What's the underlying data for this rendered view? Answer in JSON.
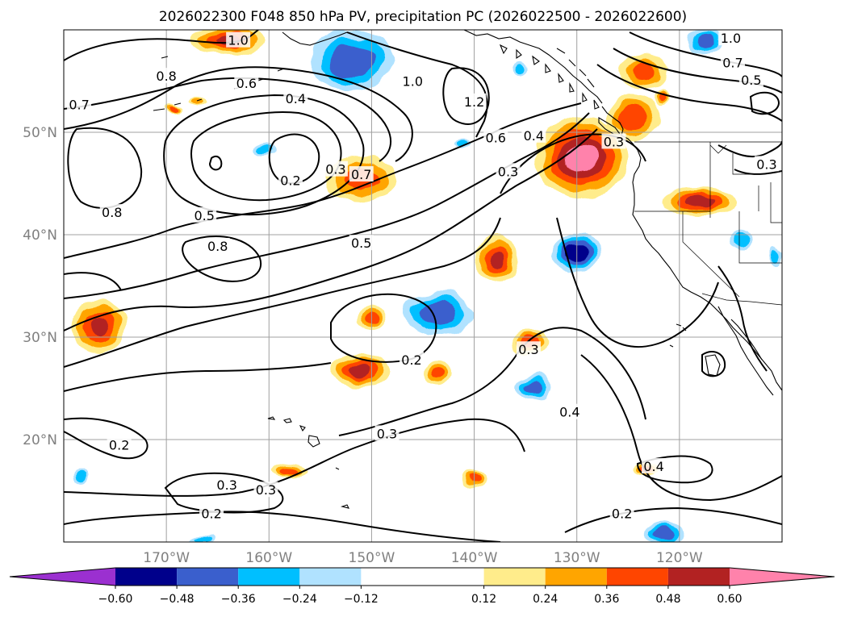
{
  "chart_data": {
    "type": "contour",
    "title": "2026022300 F048 850 hPa PV, precipitation PC (2026022500 - 2026022600)",
    "lon_range": [
      -180,
      -110
    ],
    "lat_range": [
      10,
      60
    ],
    "x_ticks": [
      {
        "value": -170,
        "label": "170°W"
      },
      {
        "value": -160,
        "label": "160°W"
      },
      {
        "value": -150,
        "label": "150°W"
      },
      {
        "value": -140,
        "label": "140°W"
      },
      {
        "value": -130,
        "label": "130°W"
      },
      {
        "value": -120,
        "label": "120°W"
      }
    ],
    "y_ticks": [
      {
        "value": 20,
        "label": "20°N"
      },
      {
        "value": 30,
        "label": "30°N"
      },
      {
        "value": 40,
        "label": "40°N"
      },
      {
        "value": 50,
        "label": "50°N"
      }
    ],
    "grid": true,
    "colorbar": {
      "boundaries": [
        -0.72,
        -0.6,
        -0.48,
        -0.36,
        -0.24,
        -0.12,
        0.12,
        0.24,
        0.36,
        0.48,
        0.6,
        0.72
      ],
      "colors": [
        "#9b30d0",
        "#00008b",
        "#3a5fcd",
        "#00bfff",
        "#b0e2ff",
        "#ffffff",
        "#ffec8b",
        "#ffa500",
        "#ff4500",
        "#b22222",
        "#ff82ab"
      ],
      "tick_values": [
        -0.6,
        -0.48,
        -0.36,
        -0.24,
        -0.12,
        0.12,
        0.24,
        0.36,
        0.48,
        0.6
      ],
      "tick_labels": [
        "−0.60",
        "−0.48",
        "−0.36",
        "−0.24",
        "−0.12",
        "0.12",
        "0.24",
        "0.36",
        "0.48",
        "0.60"
      ],
      "extend": "both"
    },
    "precip_anomalies": [
      {
        "lon": -164,
        "lat": 59,
        "rlon": 3.6,
        "rlat": 1.6,
        "value": 0.5
      },
      {
        "lon": -151,
        "lat": 45.5,
        "rlon": 3.6,
        "rlat": 2.1,
        "value": 0.4
      },
      {
        "lon": -129.5,
        "lat": 47.5,
        "rlon": 4.6,
        "rlat": 4.0,
        "value": 0.65
      },
      {
        "lon": -124.5,
        "lat": 51.5,
        "rlon": 2.6,
        "rlat": 2.2,
        "value": 0.45
      },
      {
        "lon": -123.5,
        "lat": 56,
        "rlon": 2.4,
        "rlat": 1.6,
        "value": 0.42
      },
      {
        "lon": -118,
        "lat": 43.2,
        "rlon": 3.6,
        "rlat": 1.4,
        "value": 0.5
      },
      {
        "lon": -176.5,
        "lat": 31,
        "rlon": 2.6,
        "rlat": 2.6,
        "value": 0.5
      },
      {
        "lon": -137.8,
        "lat": 37.7,
        "rlon": 2.0,
        "rlat": 2.5,
        "value": 0.5
      },
      {
        "lon": -150,
        "lat": 31.9,
        "rlon": 1.3,
        "rlat": 1.2,
        "value": 0.4
      },
      {
        "lon": -151.2,
        "lat": 26.8,
        "rlon": 2.9,
        "rlat": 1.6,
        "value": 0.5
      },
      {
        "lon": -143.5,
        "lat": 26.5,
        "rlon": 1.5,
        "rlat": 1.2,
        "value": 0.4
      },
      {
        "lon": -134.5,
        "lat": 29.5,
        "rlon": 1.8,
        "rlat": 1.1,
        "value": 0.4
      },
      {
        "lon": -140,
        "lat": 16.1,
        "rlon": 1.2,
        "rlat": 0.9,
        "value": 0.4
      },
      {
        "lon": -158,
        "lat": 17,
        "rlon": 1.8,
        "rlat": 0.7,
        "value": 0.4
      },
      {
        "lon": -123,
        "lat": 17.3,
        "rlon": 1.2,
        "rlat": 0.6,
        "value": 0.4
      },
      {
        "lon": -121.8,
        "lat": 53.5,
        "rlon": 0.8,
        "rlat": 0.8,
        "value": 0.4
      },
      {
        "lon": -169.2,
        "lat": 52.3,
        "rlon": 0.9,
        "rlat": 0.4,
        "value": 0.4
      },
      {
        "lon": -167,
        "lat": 53,
        "rlon": 0.8,
        "rlat": 0.4,
        "value": 0.3
      },
      {
        "lon": -152,
        "lat": 57,
        "rlon": 4.0,
        "rlat": 3.0,
        "value": -0.45
      },
      {
        "lon": -143.5,
        "lat": 32.3,
        "rlon": 3.3,
        "rlat": 2.1,
        "value": -0.45
      },
      {
        "lon": -130,
        "lat": 38.2,
        "rlon": 2.4,
        "rlat": 1.9,
        "value": -0.55
      },
      {
        "lon": -134.2,
        "lat": 25.1,
        "rlon": 1.7,
        "rlat": 1.3,
        "value": -0.4
      },
      {
        "lon": -117.5,
        "lat": 58.8,
        "rlon": 1.7,
        "rlat": 1.2,
        "value": -0.45
      },
      {
        "lon": -114,
        "lat": 39.5,
        "rlon": 1.2,
        "rlat": 1.0,
        "value": -0.35
      },
      {
        "lon": -135.5,
        "lat": 56.2,
        "rlon": 0.8,
        "rlat": 0.7,
        "value": -0.3
      },
      {
        "lon": -141,
        "lat": 49,
        "rlon": 0.9,
        "rlat": 0.4,
        "value": -0.3
      },
      {
        "lon": -160.5,
        "lat": 48.4,
        "rlon": 1.0,
        "rlat": 0.7,
        "value": -0.3
      },
      {
        "lon": -178.5,
        "lat": 16.3,
        "rlon": 0.7,
        "rlat": 0.7,
        "value": -0.35
      },
      {
        "lon": -121.5,
        "lat": 10.8,
        "rlon": 1.9,
        "rlat": 1.2,
        "value": -0.45
      },
      {
        "lon": -166.5,
        "lat": 10.3,
        "rlon": 1.2,
        "rlat": 0.4,
        "value": -0.3
      },
      {
        "lon": -110.5,
        "lat": 38,
        "rlon": 0.6,
        "rlat": 1.0,
        "value": -0.3
      }
    ],
    "contour_labels": [
      {
        "lon": -163,
        "lat": 59,
        "text": "1.0"
      },
      {
        "lon": -146,
        "lat": 55,
        "text": "1.0"
      },
      {
        "lon": -115,
        "lat": 59.2,
        "text": "1.0"
      },
      {
        "lon": -170,
        "lat": 55.5,
        "text": "0.8"
      },
      {
        "lon": -175.3,
        "lat": 42.2,
        "text": "0.8"
      },
      {
        "lon": -165,
        "lat": 38.9,
        "text": "0.8"
      },
      {
        "lon": -178.5,
        "lat": 52.7,
        "text": "0.7"
      },
      {
        "lon": -151,
        "lat": 45.9,
        "text": "0.7"
      },
      {
        "lon": -114.8,
        "lat": 56.8,
        "text": "0.7"
      },
      {
        "lon": -162.2,
        "lat": 54.8,
        "text": "0.6"
      },
      {
        "lon": -137.9,
        "lat": 49.5,
        "text": "0.6"
      },
      {
        "lon": -166.3,
        "lat": 41.9,
        "text": "0.5"
      },
      {
        "lon": -151,
        "lat": 39.2,
        "text": "0.5"
      },
      {
        "lon": -113,
        "lat": 55.1,
        "text": "0.5"
      },
      {
        "lon": -157.4,
        "lat": 53.3,
        "text": "0.4"
      },
      {
        "lon": -134.2,
        "lat": 49.7,
        "text": "0.4"
      },
      {
        "lon": -130.7,
        "lat": 22.7,
        "text": "0.4"
      },
      {
        "lon": -122.5,
        "lat": 17.4,
        "text": "0.4"
      },
      {
        "lon": -153.5,
        "lat": 46.4,
        "text": "0.3"
      },
      {
        "lon": -136.7,
        "lat": 46.2,
        "text": "0.3"
      },
      {
        "lon": -134.7,
        "lat": 28.8,
        "text": "0.3"
      },
      {
        "lon": -148.5,
        "lat": 20.6,
        "text": "0.3"
      },
      {
        "lon": -160.3,
        "lat": 15.1,
        "text": "0.3"
      },
      {
        "lon": -164.1,
        "lat": 15.6,
        "text": "0.3"
      },
      {
        "lon": -111.5,
        "lat": 46.9,
        "text": "0.3"
      },
      {
        "lon": -157.9,
        "lat": 45.3,
        "text": "0.2"
      },
      {
        "lon": -146.1,
        "lat": 27.8,
        "text": "0.2"
      },
      {
        "lon": -174.6,
        "lat": 19.5,
        "text": "0.2"
      },
      {
        "lon": -165.6,
        "lat": 12.8,
        "text": "0.2"
      },
      {
        "lon": -125.6,
        "lat": 12.8,
        "text": "0.2"
      },
      {
        "lon": -140,
        "lat": 53,
        "text": "1.2"
      },
      {
        "lon": -126.4,
        "lat": 49.1,
        "text": "0.3"
      }
    ]
  }
}
